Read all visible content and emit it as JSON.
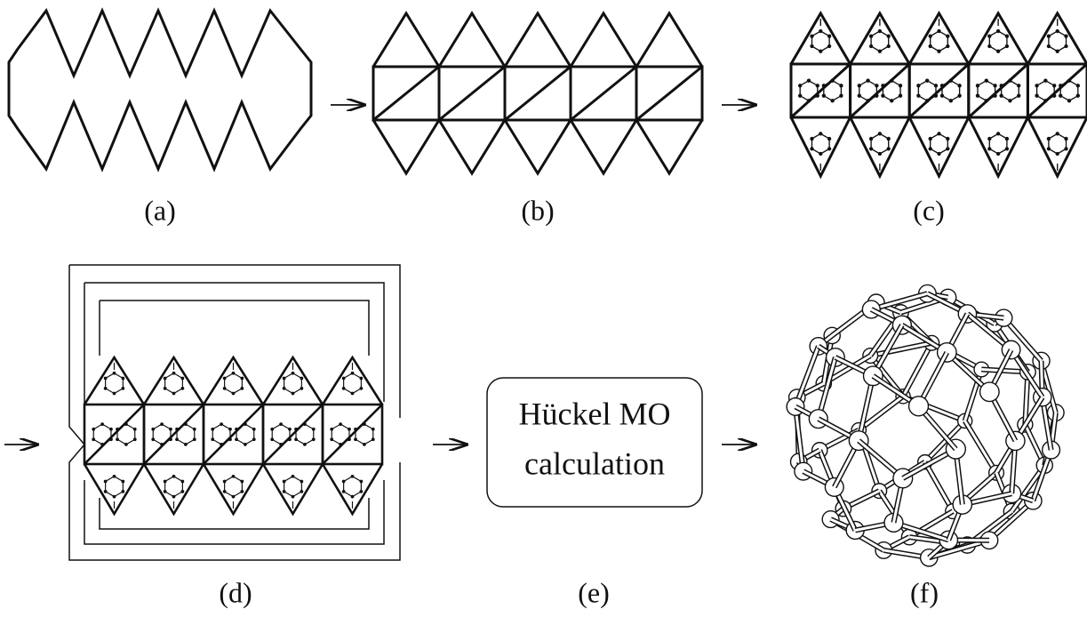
{
  "panels": [
    {
      "label": "(a)"
    },
    {
      "label": "(b)"
    },
    {
      "label": "(c)"
    },
    {
      "label": "(d)"
    },
    {
      "label": "(e)"
    },
    {
      "label": "(f)"
    }
  ],
  "box": {
    "lines": [
      "Hückel MO",
      "calculation"
    ]
  }
}
